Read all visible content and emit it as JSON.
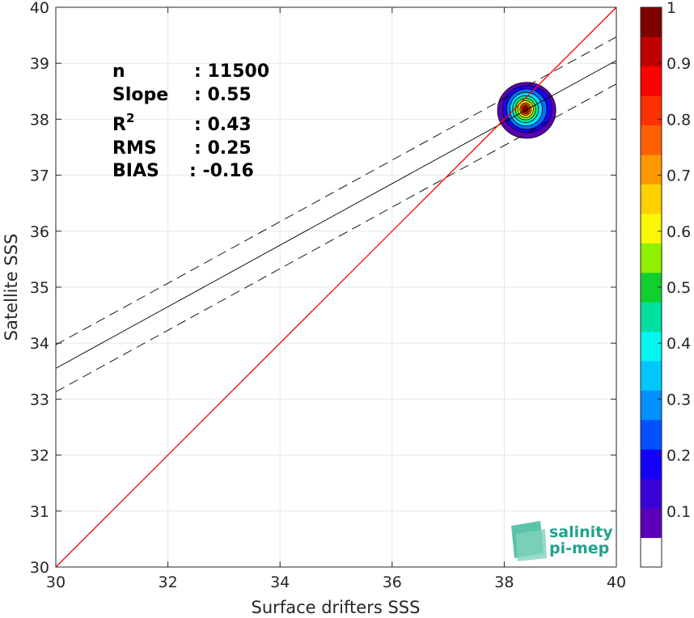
{
  "chart_data": {
    "type": "scatter",
    "xlabel": "Surface drifters SSS",
    "ylabel": "Satellite SSS",
    "xlim": [
      30,
      40
    ],
    "ylim": [
      30,
      40
    ],
    "xticks": [
      30,
      32,
      34,
      36,
      38,
      40
    ],
    "yticks": [
      30,
      31,
      32,
      33,
      34,
      35,
      36,
      37,
      38,
      39,
      40
    ],
    "grid": true,
    "identity_line": {
      "color": "#ff0000",
      "x": [
        30,
        40
      ],
      "y": [
        30,
        40
      ]
    },
    "fit_line": {
      "slope": 0.55,
      "intercept": 17.05,
      "color": "#000000"
    },
    "fit_bounds": {
      "offset": 0.42,
      "style": "dashed",
      "color": "#000000"
    },
    "density": {
      "center": [
        38.38,
        38.18
      ],
      "colormap": "jet",
      "levels": [
        {
          "level": 0.05,
          "rx": 0.52,
          "ry": 0.5,
          "dx": 0.02,
          "dy": -0.02,
          "color": "#5b00b5"
        },
        {
          "level": 0.15,
          "rx": 0.44,
          "ry": 0.42,
          "dx": 0.03,
          "dy": 0.0,
          "color": "#1e00ff"
        },
        {
          "level": 0.25,
          "rx": 0.36,
          "ry": 0.36,
          "dx": 0.02,
          "dy": 0.0,
          "color": "#0070ff"
        },
        {
          "level": 0.35,
          "rx": 0.29,
          "ry": 0.3,
          "dx": 0.01,
          "dy": 0.0,
          "color": "#00e0ff"
        },
        {
          "level": 0.45,
          "rx": 0.23,
          "ry": 0.24,
          "dx": 0.0,
          "dy": 0.0,
          "color": "#00f0a0"
        },
        {
          "level": 0.55,
          "rx": 0.18,
          "ry": 0.19,
          "dx": 0.0,
          "dy": 0.0,
          "color": "#80ff20"
        },
        {
          "level": 0.65,
          "rx": 0.14,
          "ry": 0.15,
          "dx": 0.0,
          "dy": 0.0,
          "color": "#ffe000"
        },
        {
          "level": 0.75,
          "rx": 0.1,
          "ry": 0.11,
          "dx": 0.0,
          "dy": 0.0,
          "color": "#ff8000"
        },
        {
          "level": 0.85,
          "rx": 0.07,
          "ry": 0.08,
          "dx": 0.0,
          "dy": 0.0,
          "color": "#ff2000"
        },
        {
          "level": 0.95,
          "rx": 0.04,
          "ry": 0.05,
          "dx": 0.0,
          "dy": 0.0,
          "color": "#a00000"
        }
      ]
    },
    "colorbar": {
      "lim": [
        0,
        1
      ],
      "ticks": [
        "0.1",
        "0.2",
        "0.3",
        "0.4",
        "0.5",
        "0.6",
        "0.7",
        "0.8",
        "0.9",
        "1"
      ],
      "colors": [
        "#ffffff",
        "#5c00b8",
        "#3a00d8",
        "#1400ff",
        "#0050ff",
        "#0090ff",
        "#00c8ff",
        "#00f8f0",
        "#00e0a0",
        "#10d030",
        "#90f000",
        "#f8f800",
        "#ffd000",
        "#ff9800",
        "#ff6000",
        "#ff3000",
        "#ff0000",
        "#c00000",
        "#800000"
      ]
    }
  },
  "stats": {
    "n_label": "n",
    "n_value": ": 11500",
    "slope_label": "Slope",
    "slope_value": ": 0.55",
    "r2_label": "R",
    "r2_sup": "2",
    "r2_value": ": 0.43",
    "rms_label": "RMS",
    "rms_value": ": 0.25",
    "bias_label": "BIAS",
    "bias_value": ": -0.16"
  },
  "logo": {
    "line1": "salinity",
    "line2": "pi-mep"
  }
}
